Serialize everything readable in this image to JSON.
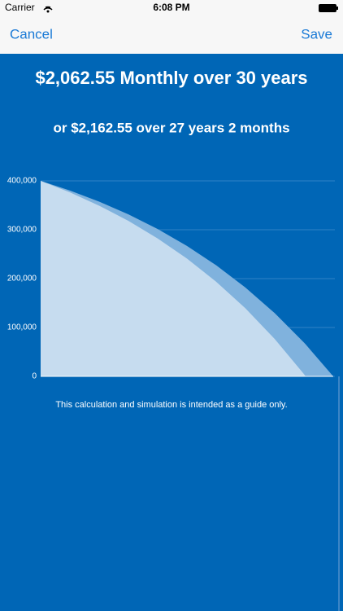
{
  "status_bar": {
    "carrier": "Carrier",
    "time": "6:08 PM"
  },
  "nav": {
    "cancel": "Cancel",
    "save": "Save"
  },
  "chart_data": {
    "type": "area",
    "title": "$2,062.55 Monthly over 30 years",
    "subtitle": "or $2,162.55 over 27 years 2 months",
    "x": [
      0,
      36,
      72,
      108,
      144,
      180,
      216,
      252,
      288,
      324,
      326,
      360
    ],
    "xlim": [
      0,
      360
    ],
    "series": [
      {
        "color": "#80b2dd",
        "values": [
          400000,
          380239,
          357525,
          331418,
          301411,
          266920,
          227270,
          181703,
          129328,
          69128,
          65534,
          0
        ]
      },
      {
        "color": "#c6dcef",
        "values": [
          400000,
          376383,
          349238,
          318038,
          282176,
          240956,
          193578,
          139122,
          76530,
          4587,
          0,
          null
        ]
      }
    ],
    "ylim": [
      0,
      400000
    ],
    "yticks": [
      {
        "value": 0,
        "label": "0"
      },
      {
        "value": 100000,
        "label": "100,000"
      },
      {
        "value": 200000,
        "label": "200,000"
      },
      {
        "value": 300000,
        "label": "300,000"
      },
      {
        "value": 400000,
        "label": "400,000"
      }
    ],
    "grid": true,
    "footnote": "This calculation and simulation is intended as a guide only."
  }
}
